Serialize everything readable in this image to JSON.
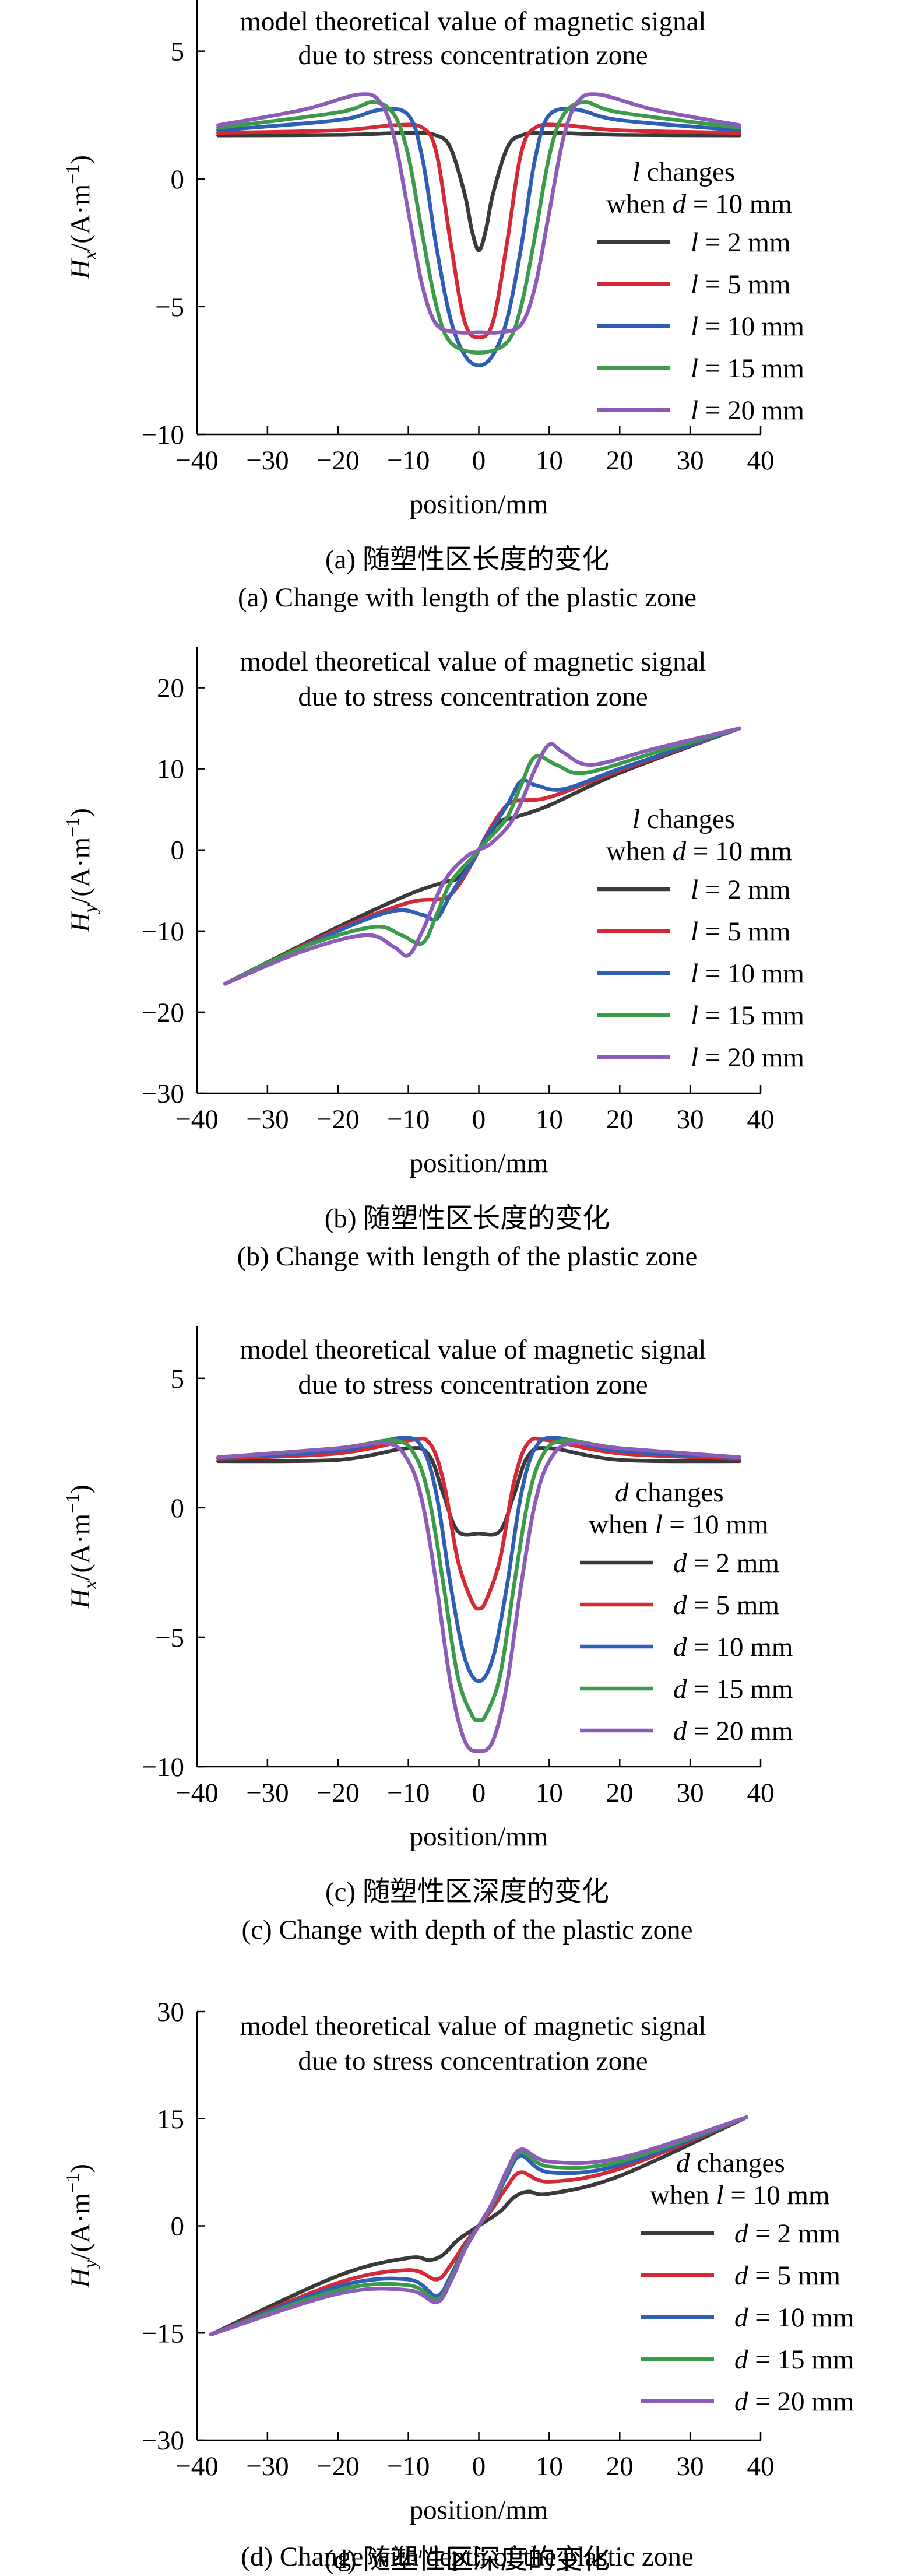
{
  "chart_data": [
    {
      "type": "line",
      "panel": "a",
      "title": "model theoretical value of magnetic signal\ndue to stress concentration zone",
      "xlabel": "position/mm",
      "ylabel_main": "H",
      "ylabel_sub": "x",
      "ylabel_unit": "/(A·m",
      "ylabel_exp": "−1",
      "ylabel_tail": ")",
      "xlim": [
        -40,
        40
      ],
      "ylim": [
        -10,
        7
      ],
      "xticks": [
        -40,
        -30,
        -20,
        -10,
        0,
        10,
        20,
        30,
        40
      ],
      "yticks": [
        -10,
        -5,
        0,
        5
      ],
      "yticklabels": [
        "−10",
        "−5",
        "0",
        "5"
      ],
      "legend_title_1": "l changes",
      "legend_title_2": "when d = 10 mm",
      "legend_var": "l",
      "legend_placement": "right",
      "series": [
        {
          "name": "l = 2 mm",
          "color": "#3a3a3a",
          "x": [
            -37,
            -20,
            -10,
            -6,
            -4,
            -2,
            -1,
            0,
            1,
            2,
            4,
            6,
            10,
            20,
            37
          ],
          "y": [
            1.7,
            1.72,
            1.8,
            1.7,
            1.2,
            -0.6,
            -2.0,
            -2.8,
            -2.0,
            -0.6,
            1.2,
            1.7,
            1.8,
            1.72,
            1.7
          ]
        },
        {
          "name": "l = 5 mm",
          "color": "#d42a35",
          "x": [
            -37,
            -20,
            -12,
            -8,
            -6,
            -4,
            -2,
            0,
            2,
            4,
            6,
            8,
            12,
            20,
            37
          ],
          "y": [
            1.8,
            1.9,
            2.1,
            2.0,
            1.0,
            -2.5,
            -5.6,
            -6.2,
            -5.6,
            -2.5,
            1.0,
            2.0,
            2.1,
            1.9,
            1.8
          ]
        },
        {
          "name": "l = 10 mm",
          "color": "#2e5fb4",
          "x": [
            -37,
            -20,
            -14,
            -10,
            -8,
            -6,
            -4,
            -2,
            0,
            2,
            4,
            6,
            8,
            10,
            14,
            20,
            37
          ],
          "y": [
            1.9,
            2.3,
            2.7,
            2.5,
            0.8,
            -2.7,
            -5.5,
            -6.9,
            -7.3,
            -6.9,
            -5.5,
            -2.7,
            0.8,
            2.5,
            2.7,
            2.3,
            1.9
          ]
        },
        {
          "name": "l = 15 mm",
          "color": "#3b9b4a",
          "x": [
            -37,
            -20,
            -15,
            -12,
            -10,
            -8,
            -6,
            -4,
            0,
            4,
            6,
            8,
            10,
            12,
            15,
            20,
            37
          ],
          "y": [
            2.0,
            2.6,
            3.0,
            2.5,
            0.9,
            -2.2,
            -5.0,
            -6.4,
            -6.8,
            -6.4,
            -5.0,
            -2.2,
            0.9,
            2.5,
            3.0,
            2.6,
            2.0
          ]
        },
        {
          "name": "l = 20 mm",
          "color": "#8d5bb8",
          "x": [
            -37,
            -25,
            -17,
            -14,
            -12,
            -10,
            -8,
            -6,
            -3,
            0,
            3,
            6,
            8,
            10,
            12,
            14,
            17,
            25,
            37
          ],
          "y": [
            2.1,
            2.7,
            3.3,
            3.0,
            1.6,
            -1.3,
            -4.2,
            -5.7,
            -6.0,
            -6.0,
            -6.0,
            -5.7,
            -4.2,
            -1.3,
            1.6,
            3.0,
            3.3,
            2.7,
            2.1
          ]
        }
      ],
      "caption_cn": "(a) 随塑性区长度的变化",
      "caption_en": "(a) Change with length of the plastic zone"
    },
    {
      "type": "line",
      "panel": "b",
      "title": "model theoretical value of magnetic signal\ndue to stress concentration zone",
      "xlabel": "position/mm",
      "ylabel_main": "H",
      "ylabel_sub": "y",
      "ylabel_unit": "/(A·m",
      "ylabel_exp": "−1",
      "ylabel_tail": ")",
      "xlim": [
        -40,
        40
      ],
      "ylim": [
        -30,
        25
      ],
      "xticks": [
        -40,
        -30,
        -20,
        -10,
        0,
        10,
        20,
        30,
        40
      ],
      "yticks": [
        -30,
        -20,
        -10,
        0,
        10,
        20
      ],
      "yticklabels": [
        "−30",
        "−20",
        "−10",
        "0",
        "10",
        "20"
      ],
      "legend_title_1": "l changes",
      "legend_title_2": "when d = 10 mm",
      "legend_var": "l",
      "legend_placement": "right",
      "series": [
        {
          "name": "l = 2 mm",
          "color": "#3a3a3a",
          "x": [
            -36,
            -20,
            -10,
            -5,
            -3,
            -1,
            0,
            1,
            3,
            5,
            10,
            20,
            37
          ],
          "y": [
            -16.5,
            -9.5,
            -5.5,
            -4.0,
            -3.5,
            -1.5,
            0,
            1.5,
            3.5,
            4.0,
            5.5,
            9.5,
            15.0
          ]
        },
        {
          "name": "l = 5 mm",
          "color": "#d42a35",
          "x": [
            -36,
            -20,
            -10,
            -5,
            -3,
            -1,
            0,
            1,
            3,
            5,
            10,
            20,
            37
          ],
          "y": [
            -16.5,
            -9.8,
            -6.5,
            -6.0,
            -4.5,
            -1.7,
            0,
            1.7,
            4.5,
            6.0,
            6.5,
            9.8,
            15.0
          ]
        },
        {
          "name": "l = 10 mm",
          "color": "#2e5fb4",
          "x": [
            -36,
            -20,
            -12,
            -8,
            -6,
            -4,
            -1,
            0,
            1,
            4,
            6,
            8,
            12,
            20,
            37
          ],
          "y": [
            -16.5,
            -10.0,
            -7.5,
            -8.0,
            -8.5,
            -5.5,
            -1.5,
            0,
            1.5,
            5.5,
            8.5,
            8.0,
            7.5,
            10.0,
            15.0
          ]
        },
        {
          "name": "l = 15 mm",
          "color": "#3b9b4a",
          "x": [
            -36,
            -25,
            -15,
            -11,
            -8,
            -6,
            -4,
            -1,
            0,
            1,
            4,
            6,
            8,
            11,
            15,
            25,
            37
          ],
          "y": [
            -16.5,
            -12.0,
            -9.5,
            -10.5,
            -11.5,
            -8.0,
            -4.0,
            -1.0,
            0,
            1.0,
            4.0,
            8.0,
            11.5,
            10.5,
            9.5,
            12.0,
            15.0
          ]
        },
        {
          "name": "l = 20 mm",
          "color": "#8d5bb8",
          "x": [
            -36,
            -25,
            -16,
            -12,
            -10,
            -8,
            -5,
            -2,
            0,
            2,
            5,
            8,
            10,
            12,
            16,
            25,
            37
          ],
          "y": [
            -16.5,
            -12.5,
            -10.5,
            -12.0,
            -13.0,
            -10.0,
            -4.0,
            -1.0,
            0,
            1.0,
            4.0,
            10.0,
            13.0,
            12.0,
            10.5,
            12.5,
            15.0
          ]
        }
      ],
      "caption_cn": "(b) 随塑性区长度的变化",
      "caption_en": "(b) Change with length of the plastic zone"
    },
    {
      "type": "line",
      "panel": "c",
      "title": "model theoretical value of magnetic signal\ndue to stress concentration zone",
      "xlabel": "position/mm",
      "ylabel_main": "H",
      "ylabel_sub": "x",
      "ylabel_unit": "/(A·m",
      "ylabel_exp": "−1",
      "ylabel_tail": ")",
      "xlim": [
        -40,
        40
      ],
      "ylim": [
        -10,
        7
      ],
      "xticks": [
        -40,
        -30,
        -20,
        -10,
        0,
        10,
        20,
        30,
        40
      ],
      "yticks": [
        -10,
        -5,
        0,
        5
      ],
      "yticklabels": [
        "−10",
        "−5",
        "0",
        "5"
      ],
      "legend_title_1": "d changes",
      "legend_title_2": "when l = 10 mm",
      "legend_var": "d",
      "legend_placement": "right",
      "series": [
        {
          "name": "d = 2 mm",
          "color": "#3a3a3a",
          "x": [
            -37,
            -20,
            -10,
            -7,
            -5,
            -3,
            0,
            3,
            5,
            7,
            10,
            20,
            37
          ],
          "y": [
            1.8,
            1.85,
            2.3,
            2.0,
            0.5,
            -0.9,
            -1.0,
            -0.9,
            0.5,
            2.0,
            2.3,
            1.85,
            1.8
          ]
        },
        {
          "name": "d = 5 mm",
          "color": "#d42a35",
          "x": [
            -37,
            -20,
            -10,
            -7,
            -5,
            -3,
            -1,
            0,
            1,
            3,
            5,
            7,
            10,
            20,
            37
          ],
          "y": [
            1.9,
            2.1,
            2.6,
            2.5,
            1.0,
            -2.0,
            -3.6,
            -3.9,
            -3.6,
            -2.0,
            1.0,
            2.5,
            2.6,
            2.1,
            1.9
          ]
        },
        {
          "name": "d = 10 mm",
          "color": "#2e5fb4",
          "x": [
            -37,
            -20,
            -11,
            -8,
            -6,
            -4,
            -2,
            0,
            2,
            4,
            6,
            8,
            11,
            20,
            37
          ],
          "y": [
            1.95,
            2.2,
            2.7,
            2.3,
            0.5,
            -3.0,
            -5.8,
            -6.7,
            -5.8,
            -3.0,
            0.5,
            2.3,
            2.7,
            2.2,
            1.95
          ]
        },
        {
          "name": "d = 15 mm",
          "color": "#3b9b4a",
          "x": [
            -37,
            -20,
            -12,
            -9,
            -7,
            -5,
            -3,
            -1,
            0,
            1,
            3,
            5,
            7,
            9,
            12,
            20,
            37
          ],
          "y": [
            1.95,
            2.3,
            2.6,
            2.0,
            0.3,
            -3.0,
            -6.5,
            -8.0,
            -8.2,
            -8.0,
            -6.5,
            -3.0,
            0.3,
            2.0,
            2.6,
            2.3,
            1.95
          ]
        },
        {
          "name": "d = 20 mm",
          "color": "#8d5bb8",
          "x": [
            -37,
            -20,
            -13,
            -10,
            -8,
            -6,
            -4,
            -2,
            0,
            2,
            4,
            6,
            8,
            10,
            13,
            20,
            37
          ],
          "y": [
            1.95,
            2.3,
            2.5,
            1.8,
            0.2,
            -3.0,
            -6.8,
            -9.0,
            -9.4,
            -9.0,
            -6.8,
            -3.0,
            0.2,
            1.8,
            2.5,
            2.3,
            1.95
          ]
        }
      ],
      "caption_cn": "(c) 随塑性区深度的变化",
      "caption_en": "(c) Change with depth of the plastic zone"
    },
    {
      "type": "line",
      "panel": "d",
      "title": "model theoretical value of magnetic signal\ndue to stress concentration zone",
      "xlabel": "position/mm",
      "ylabel_main": "H",
      "ylabel_sub": "y",
      "ylabel_unit": "/(A·m",
      "ylabel_exp": "−1",
      "ylabel_tail": ")",
      "xlim": [
        -40,
        40
      ],
      "ylim": [
        -30,
        30
      ],
      "xticks": [
        -40,
        -30,
        -20,
        -10,
        0,
        10,
        20,
        30,
        40
      ],
      "yticks": [
        -30,
        -15,
        0,
        15,
        30
      ],
      "yticklabels": [
        "−30",
        "−15",
        "0",
        "15",
        "30"
      ],
      "legend_title_1": "d changes",
      "legend_title_2": "when l = 10 mm",
      "legend_var": "d",
      "legend_placement": "right",
      "series": [
        {
          "name": "d = 2 mm",
          "color": "#3a3a3a",
          "x": [
            -38,
            -20,
            -10,
            -7,
            -5,
            -3,
            0,
            3,
            5,
            7,
            10,
            20,
            38
          ],
          "y": [
            -15.2,
            -7.0,
            -4.5,
            -4.8,
            -4.0,
            -2.0,
            0,
            2.0,
            4.0,
            4.8,
            4.5,
            7.0,
            15.2
          ]
        },
        {
          "name": "d = 5 mm",
          "color": "#d42a35",
          "x": [
            -38,
            -20,
            -10,
            -6,
            -4,
            -2,
            0,
            2,
            4,
            6,
            10,
            20,
            38
          ],
          "y": [
            -15.2,
            -8.0,
            -6.2,
            -7.5,
            -5.5,
            -2.5,
            0,
            2.5,
            5.5,
            7.5,
            6.2,
            8.0,
            15.2
          ]
        },
        {
          "name": "d = 10 mm",
          "color": "#2e5fb4",
          "x": [
            -38,
            -20,
            -10,
            -6,
            -4,
            -2,
            0,
            2,
            4,
            6,
            10,
            20,
            38
          ],
          "y": [
            -15.2,
            -8.5,
            -7.5,
            -9.8,
            -7.0,
            -3.0,
            0,
            3.0,
            7.0,
            9.8,
            7.5,
            8.5,
            15.2
          ]
        },
        {
          "name": "d = 15 mm",
          "color": "#3b9b4a",
          "x": [
            -38,
            -20,
            -10,
            -6,
            -4,
            -2,
            0,
            2,
            4,
            6,
            10,
            20,
            38
          ],
          "y": [
            -15.2,
            -9.0,
            -8.3,
            -10.3,
            -7.5,
            -3.2,
            0,
            3.2,
            7.5,
            10.3,
            8.3,
            9.0,
            15.2
          ]
        },
        {
          "name": "d = 20 mm",
          "color": "#8d5bb8",
          "x": [
            -38,
            -20,
            -10,
            -6,
            -4,
            -2,
            0,
            2,
            4,
            6,
            10,
            20,
            38
          ],
          "y": [
            -15.2,
            -9.5,
            -9.0,
            -10.7,
            -7.8,
            -3.4,
            0,
            3.4,
            7.8,
            10.7,
            9.0,
            9.5,
            15.2
          ]
        }
      ],
      "caption_cn": "(d) 随塑性区深度的变化",
      "caption_en": "(d) Change with depth of the plastic zone"
    }
  ]
}
